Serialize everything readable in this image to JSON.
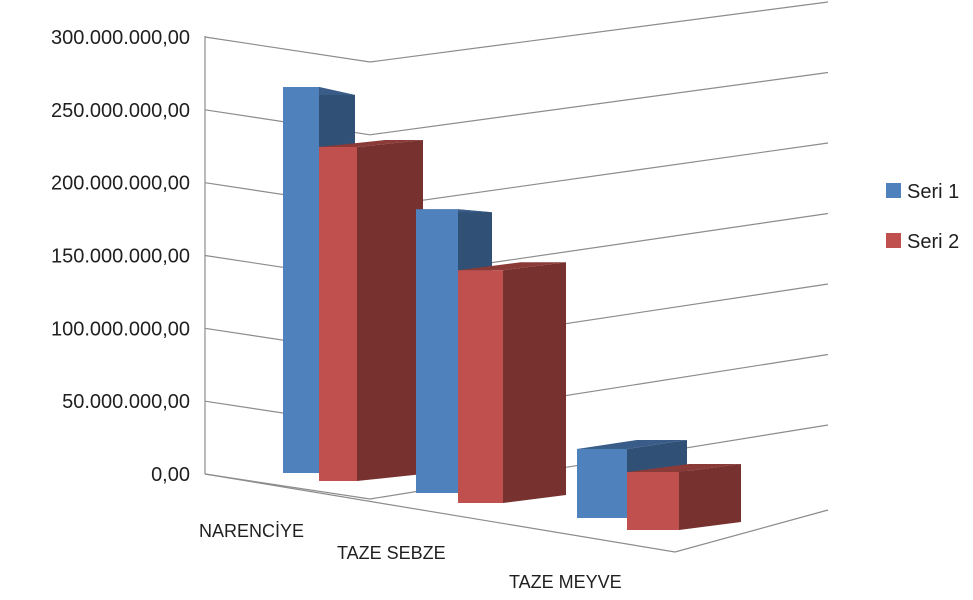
{
  "chart_data": {
    "type": "bar",
    "categories": [
      "NARENCİYE",
      "TAZE SEBZE",
      "TAZE MEYVE"
    ],
    "series": [
      {
        "name": "Seri 1",
        "color": "#4F81BD",
        "values": [
          260000000,
          195000000,
          50000000
        ]
      },
      {
        "name": "Seri 2",
        "color": "#C0504D",
        "values": [
          225000000,
          160000000,
          42000000
        ]
      }
    ],
    "y_ticks": [
      "0,00",
      "50.000.000,00",
      "100.000.000,00",
      "150.000.000,00",
      "200.000.000,00",
      "250.000.000,00",
      "300.000.000,00"
    ],
    "ylim": [
      0,
      300000000
    ],
    "title": "",
    "xlabel": "",
    "ylabel": "",
    "grid": true,
    "legend_position": "right",
    "style": "3d-perspective-clustered-column"
  }
}
